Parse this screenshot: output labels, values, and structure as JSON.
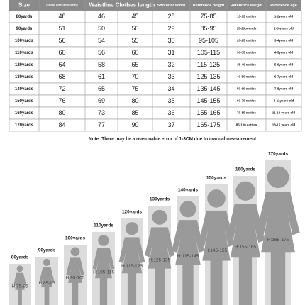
{
  "table": {
    "header": [
      "Size",
      "Chest circumference",
      "Waistline",
      "Clothes length",
      "Shoulder width",
      "Reference height",
      "Reference weight",
      "Reference age"
    ],
    "rows": [
      [
        "80yards",
        48,
        46,
        45,
        28,
        "75-85",
        "10-15 catties",
        "1-2years old"
      ],
      [
        "90yards",
        51,
        50,
        50,
        29,
        "85-95",
        "15-20pounds",
        "2-3 years old"
      ],
      [
        "100yards",
        56,
        54,
        55,
        30,
        "95-105",
        "20-25 catties",
        "3-4years old"
      ],
      [
        "110yards",
        60,
        56,
        60,
        31,
        "105-115",
        "30-35 catties",
        "4-5years old"
      ],
      [
        "120yards",
        64,
        58,
        65,
        32,
        "115-125",
        "35-40 catties",
        "5-6years old"
      ],
      [
        "130yards",
        68,
        61,
        70,
        33,
        "125-135",
        "40-50 catties",
        "6-7years old"
      ],
      [
        "140yards",
        72,
        65,
        75,
        34,
        "135-145",
        "50-60 catties",
        "7-8years old"
      ],
      [
        "150yards",
        76,
        69,
        80,
        35,
        "145-155",
        "60-70 catties",
        "8-11years old"
      ],
      [
        "160yards",
        80,
        73,
        85,
        36,
        "155-165",
        "70-85 catties",
        "11-13 years old"
      ],
      [
        "170yards",
        84,
        77,
        90,
        37,
        "165-175",
        "85-100 catties",
        "13-15 years old"
      ]
    ]
  },
  "note": "Note: There may be a reasonable error of 1-3CM due to manual measurement.",
  "figures": [
    {
      "size": "80yards",
      "height": "H:75-85"
    },
    {
      "size": "90yards",
      "height": "H:85-95"
    },
    {
      "size": "100yards",
      "height": "H:95-105"
    },
    {
      "size": "110yards",
      "height": "H:105-115"
    },
    {
      "size": "120yards",
      "height": "H:115-125"
    },
    {
      "size": "130yards",
      "height": "H:125-135"
    },
    {
      "size": "140yards",
      "height": "H:135-145"
    },
    {
      "size": "150yards",
      "height": "H:145-155"
    },
    {
      "size": "160yards",
      "height": "H:155-165"
    },
    {
      "size": "170yards",
      "height": "H:165-175"
    }
  ]
}
